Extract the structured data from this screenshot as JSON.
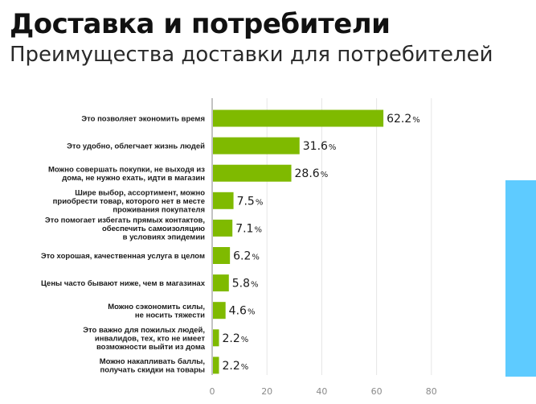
{
  "header": {
    "title": "Доставка и потребители",
    "subtitle": "Преимущества доставки для потребителей"
  },
  "colors": {
    "bar": "#7fba00",
    "side_panel": "#5ecbff",
    "grid": "#e6e6e6",
    "axis": "#9a9a9a"
  },
  "chart_data": {
    "type": "bar",
    "orientation": "horizontal",
    "title": "Преимущества доставки для потребителей",
    "categories": [
      "Это позволяет экономить время",
      "Это удобно, облегчает жизнь людей",
      "Можно совершать покупки, не выходя из дома, не нужно ехать, идти в магазин",
      "Шире выбор, ассортимент, можно приобрести товар, которого нет в месте проживания покупателя",
      "Это помогает избегать прямых контактов, обеспечить самоизоляцию в условиях эпидемии",
      "Это хорошая, качественная услуга в целом",
      "Цены часто бывают ниже, чем в магазинах",
      "Можно сэкономить силы, не носить тяжести",
      "Это важно для пожилых людей, инвалидов, тех, кто не имеет возможности выйти из дома",
      "Можно накапливать баллы, получать скидки на товары"
    ],
    "label_lines": [
      [
        "Это позволяет экономить время"
      ],
      [
        "Это удобно, облегчает жизнь людей"
      ],
      [
        "Можно совершать покупки, не выходя из",
        "дома, не нужно ехать, идти в магазин"
      ],
      [
        "Шире выбор, ассортимент, можно",
        "приобрести товар, которого нет в месте",
        "проживания покупателя"
      ],
      [
        "Это помогает избегать прямых контактов,",
        "обеспечить самоизоляцию",
        "в условиях эпидемии"
      ],
      [
        "Это хорошая, качественная услуга в целом"
      ],
      [
        "Цены часто бывают ниже, чем в магазинах"
      ],
      [
        "Можно сэкономить силы,",
        "не носить тяжести"
      ],
      [
        "Это важно для пожилых людей,",
        "инвалидов, тех, кто не имеет",
        "возможности выйти из дома"
      ],
      [
        "Можно накапливать баллы,",
        "получать скидки на товары"
      ]
    ],
    "values": [
      62.2,
      31.6,
      28.6,
      7.5,
      7.1,
      6.2,
      5.8,
      4.6,
      2.2,
      2.2
    ],
    "value_labels": [
      "62.2",
      "31.6",
      "28.6",
      "7.5",
      "7.1",
      "6.2",
      "5.8",
      "4.6",
      "2.2",
      "2.2"
    ],
    "unit": "%",
    "xticks": [
      0,
      20,
      40,
      60,
      80
    ],
    "xlim": [
      0,
      80
    ],
    "xlabel": "",
    "ylabel": "",
    "grid": true
  }
}
